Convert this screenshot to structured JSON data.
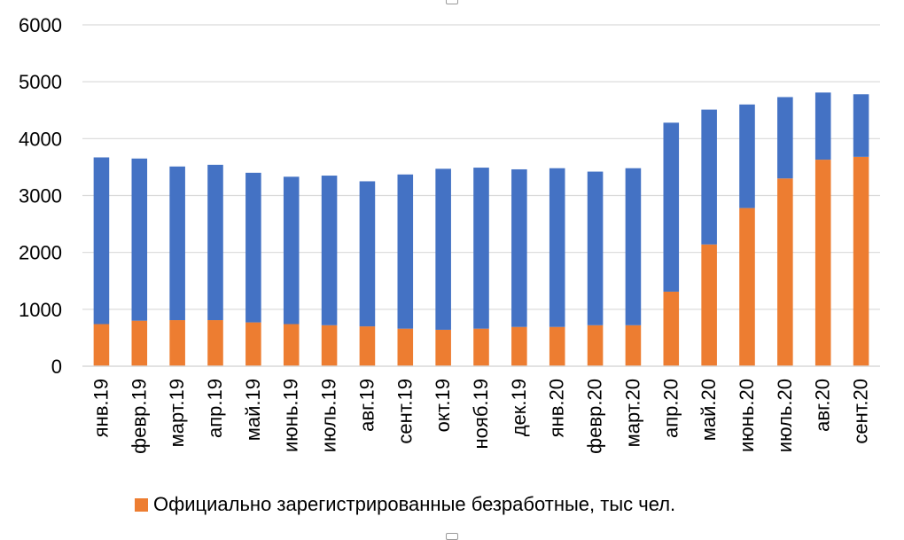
{
  "chart_data": {
    "type": "bar",
    "stacked": true,
    "categories": [
      "янв.19",
      "февр.19",
      "март.19",
      "апр.19",
      "май.19",
      "июнь.19",
      "июль.19",
      "авг.19",
      "сент.19",
      "окт.19",
      "нояб.19",
      "дек.19",
      "янв.20",
      "февр.20",
      "март.20",
      "апр.20",
      "май.20",
      "июнь.20",
      "июль.20",
      "авг.20",
      "сент.20"
    ],
    "series": [
      {
        "name": "Официально зарегистрированные безработные, тыс чел.",
        "color": "#ED7D31",
        "values": [
          740,
          800,
          810,
          810,
          770,
          740,
          720,
          700,
          660,
          640,
          660,
          690,
          690,
          720,
          720,
          1310,
          2140,
          2780,
          3300,
          3630,
          3680
        ]
      },
      {
        "color": "#4472C4",
        "values": [
          2930,
          2850,
          2700,
          2730,
          2630,
          2590,
          2630,
          2550,
          2710,
          2830,
          2830,
          2770,
          2790,
          2700,
          2760,
          2970,
          2370,
          1820,
          1430,
          1180,
          1100
        ]
      }
    ],
    "ylim": [
      0,
      6000
    ],
    "yticks": [
      0,
      1000,
      2000,
      3000,
      4000,
      5000,
      6000
    ],
    "grid": true,
    "legend_position": "bottom"
  }
}
